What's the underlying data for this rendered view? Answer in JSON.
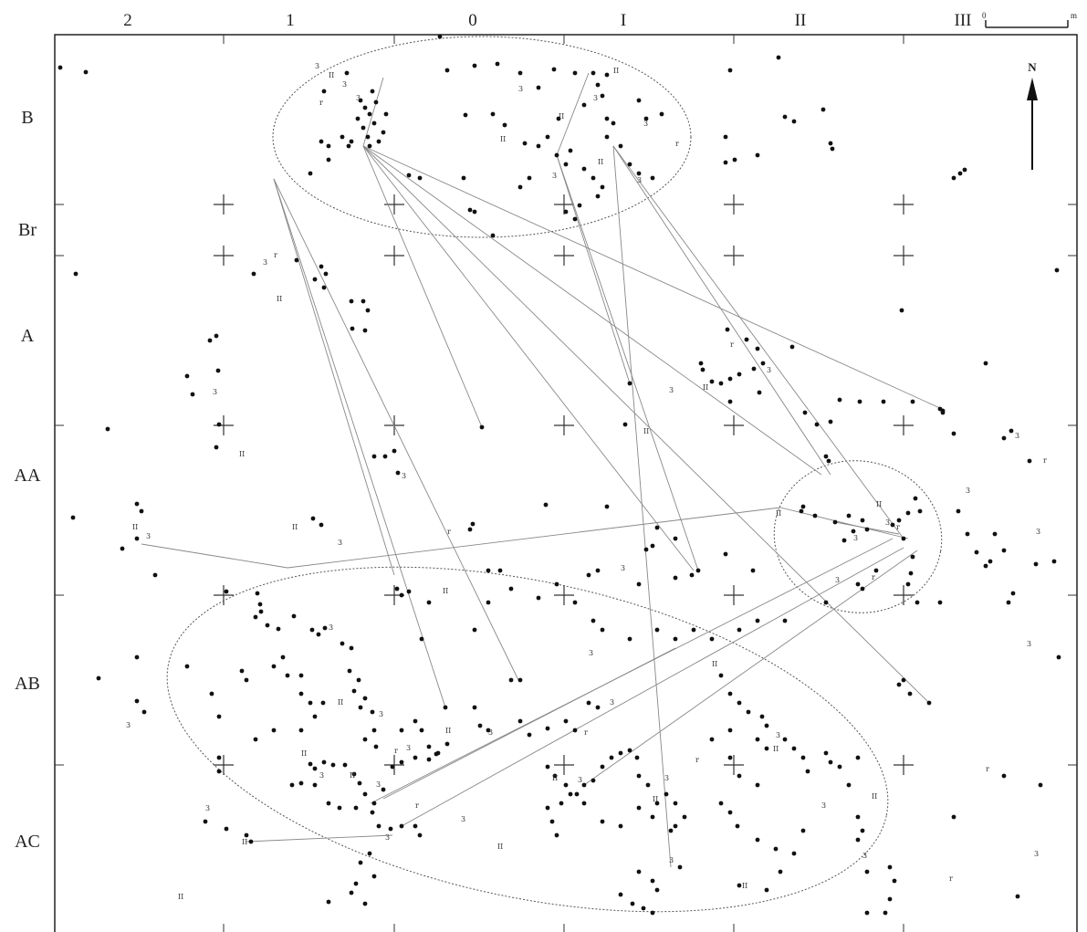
{
  "columns": [
    "2",
    "1",
    "0",
    "I",
    "II",
    "III"
  ],
  "rows": [
    "B",
    "Br",
    "A",
    "AA",
    "AB",
    "AC"
  ],
  "north_label": "N",
  "scale_label": "0",
  "scale_unit": "m",
  "finds": {
    "type": "scatter",
    "marker_color": "#111111",
    "line_color": "#888888"
  }
}
